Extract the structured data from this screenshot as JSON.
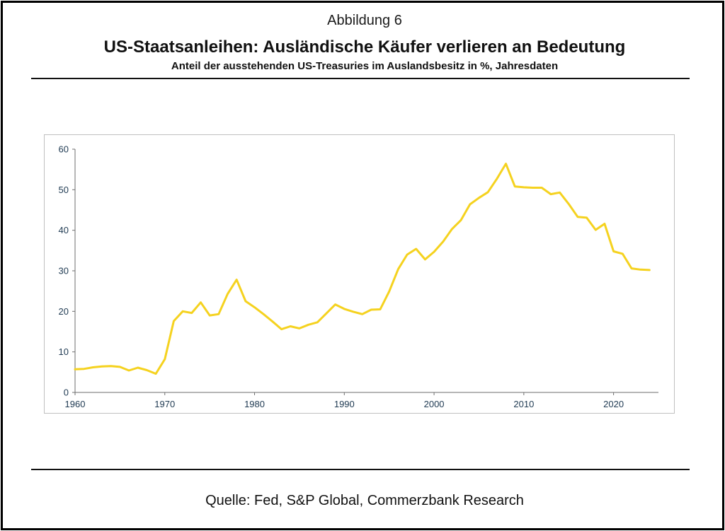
{
  "header": {
    "figure_label": "Abbildung 6",
    "title": "US-Staatsanleihen: Ausländische Käufer verlieren an Bedeutung",
    "subtitle": "Anteil der ausstehenden US-Treasuries im Auslandsbesitz in %, Jahresdaten"
  },
  "footer": {
    "source": "Quelle: Fed, S&P Global, Commerzbank Research"
  },
  "chart_data": {
    "type": "line",
    "title": "",
    "xlabel": "",
    "ylabel": "",
    "xlim": [
      1960,
      2025
    ],
    "ylim": [
      0,
      60
    ],
    "x_ticks": [
      1960,
      1970,
      1980,
      1990,
      2000,
      2010,
      2020
    ],
    "y_ticks": [
      0,
      10,
      20,
      30,
      40,
      50,
      60
    ],
    "grid": false,
    "legend": "none",
    "series": [
      {
        "color": "#f5d21f",
        "x": [
          1960,
          1961,
          1962,
          1963,
          1964,
          1965,
          1966,
          1967,
          1968,
          1969,
          1970,
          1971,
          1972,
          1973,
          1974,
          1975,
          1976,
          1977,
          1978,
          1979,
          1980,
          1981,
          1982,
          1983,
          1984,
          1985,
          1986,
          1987,
          1988,
          1989,
          1990,
          1991,
          1992,
          1993,
          1994,
          1995,
          1996,
          1997,
          1998,
          1999,
          2000,
          2001,
          2002,
          2003,
          2004,
          2005,
          2006,
          2007,
          2008,
          2009,
          2010,
          2011,
          2012,
          2013,
          2014,
          2015,
          2016,
          2017,
          2018,
          2019,
          2020,
          2021,
          2022,
          2023,
          2024
        ],
        "values": [
          5.7,
          5.8,
          6.2,
          6.4,
          6.5,
          6.3,
          5.4,
          6.1,
          5.5,
          4.6,
          8.2,
          17.6,
          20.0,
          19.6,
          22.2,
          19.0,
          19.3,
          24.3,
          27.8,
          22.5,
          21.0,
          19.3,
          17.5,
          15.6,
          16.3,
          15.8,
          16.7,
          17.3,
          19.5,
          21.7,
          20.6,
          19.9,
          19.3,
          20.4,
          20.5,
          24.9,
          30.4,
          34.0,
          35.4,
          32.8,
          34.7,
          37.2,
          40.3,
          42.5,
          46.4,
          48.0,
          49.4,
          52.7,
          56.4,
          50.8,
          50.6,
          50.5,
          50.5,
          48.9,
          49.3,
          46.5,
          43.3,
          43.1,
          40.1,
          41.6,
          34.8,
          34.2,
          30.6,
          30.3,
          30.2
        ]
      }
    ]
  }
}
